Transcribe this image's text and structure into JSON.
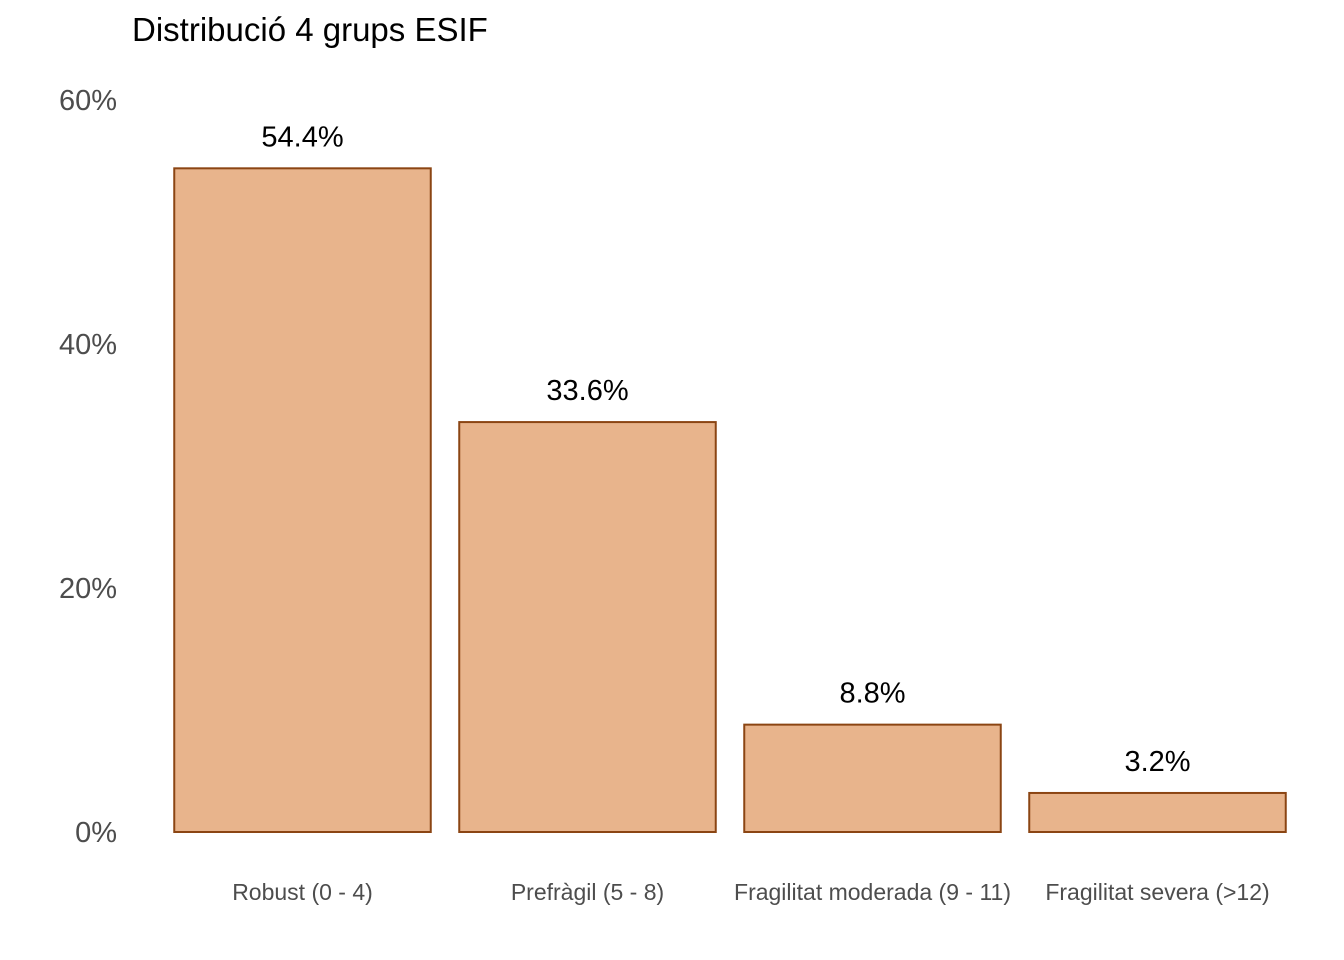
{
  "chart_data": {
    "type": "bar",
    "title": "Distribució 4 grups ESIF",
    "xlabel": "",
    "ylabel": "",
    "categories": [
      "Robust (0 - 4)",
      "Prefràgil (5 - 8)",
      "Fragilitat moderada (9 - 11)",
      "Fragilitat severa (>12)"
    ],
    "values": [
      54.4,
      33.6,
      8.8,
      3.2
    ],
    "data_labels": [
      "54.4%",
      "33.6%",
      "8.8%",
      "3.2%"
    ],
    "ylim": [
      0,
      60
    ],
    "yticks": [
      0,
      20,
      40,
      60
    ],
    "ytick_labels": [
      "0%",
      "20%",
      "40%",
      "60%"
    ],
    "grid": false,
    "legend": "none",
    "colors": {
      "bar_fill": "#E8B48C",
      "bar_stroke": "#8B4513"
    }
  }
}
